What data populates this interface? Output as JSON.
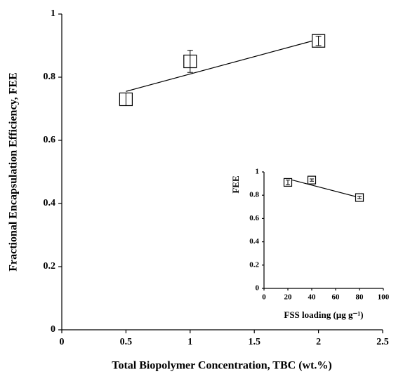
{
  "chart_data": [
    {
      "type": "scatter",
      "x_label": "Total Biopolymer Concentration, TBC (wt.%)",
      "y_label": "Fractional Encapsulation Efficiency, FEE",
      "x": [
        0.5,
        1,
        2
      ],
      "values": [
        0.73,
        0.85,
        0.915
      ],
      "errors": [
        0.02,
        0.035,
        0.015
      ],
      "color": "#000000",
      "trend": {
        "x": [
          0.5,
          2
        ],
        "y": [
          0.755,
          0.92
        ]
      },
      "xlim": [
        0,
        2.5
      ],
      "xticks": [
        0,
        0.5,
        1,
        1.5,
        2,
        2.5
      ],
      "ylim": [
        0,
        1
      ],
      "yticks": [
        0,
        0.2,
        0.4,
        0.6,
        0.8,
        1
      ]
    },
    {
      "type": "scatter",
      "x_label": "FSS loading (µg g⁻¹)",
      "y_label": "FEE",
      "x": [
        20,
        40,
        80
      ],
      "values": [
        0.91,
        0.93,
        0.78
      ],
      "errors": [
        0.02,
        0.01,
        0.01
      ],
      "color": "#000000",
      "trend": {
        "x": [
          20,
          80
        ],
        "y": [
          0.94,
          0.78
        ]
      },
      "xlim": [
        0,
        100
      ],
      "xticks": [
        0,
        20,
        40,
        60,
        80,
        100
      ],
      "ylim": [
        0,
        1
      ],
      "yticks": [
        0,
        0.2,
        0.4,
        0.6,
        0.8,
        1
      ]
    }
  ]
}
